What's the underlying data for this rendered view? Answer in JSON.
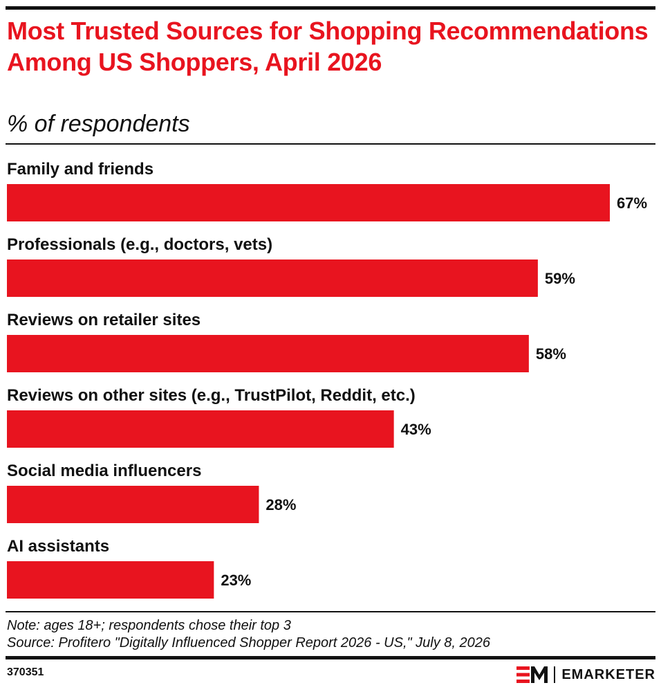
{
  "header": {
    "title": "Most Trusted Sources for Shopping Recommendations Among US Shoppers, April 2026",
    "subtitle": "% of respondents"
  },
  "chart_data": {
    "type": "bar",
    "orientation": "horizontal",
    "title": "Most Trusted Sources for Shopping Recommendations Among US Shoppers, April 2026",
    "subtitle": "% of respondents",
    "categories": [
      "Family and friends",
      "Professionals (e.g., doctors, vets)",
      "Reviews on retailer sites",
      "Reviews on other sites (e.g., TrustPilot, Reddit, etc.)",
      "Social media influencers",
      "AI assistants"
    ],
    "values": [
      67,
      59,
      58,
      43,
      28,
      23
    ],
    "value_labels": [
      "67%",
      "59%",
      "58%",
      "43%",
      "28%",
      "23%"
    ],
    "xlim": [
      0,
      67
    ],
    "grid": false,
    "bar_color": "#e8141f"
  },
  "footer": {
    "note": "Note: ages 18+; respondents chose their top 3",
    "source": "Source: Profitero \"Digitally Influenced Shopper Report 2026 - US,\" July 8, 2026",
    "chart_id": "370351",
    "brand": "EMARKETER"
  },
  "colors": {
    "accent": "#e8141f",
    "text": "#111111"
  }
}
